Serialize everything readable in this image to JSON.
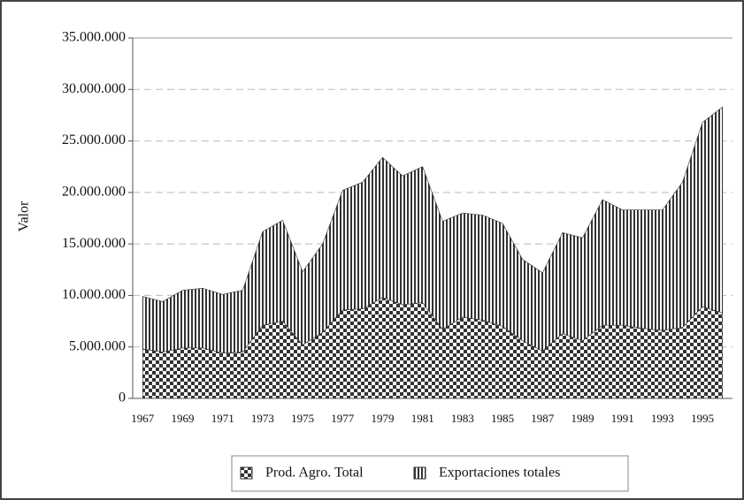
{
  "chart_data": {
    "type": "stacked-area",
    "y_label": "Valor",
    "categories": [
      "1967",
      null,
      "1969",
      null,
      "1971",
      null,
      "1973",
      null,
      "1975",
      null,
      "1977",
      null,
      "1979",
      null,
      "1981",
      null,
      "1983",
      null,
      "1985",
      null,
      "1987",
      null,
      "1989",
      null,
      "1991",
      null,
      "1993",
      null,
      "1995",
      null
    ],
    "series": [
      {
        "name": "Prod. Agro. Total",
        "color": "#333333",
        "pattern": "checker",
        "values": [
          4800000,
          4500000,
          4900000,
          4900000,
          4400000,
          4500000,
          7100000,
          7500000,
          5200000,
          6400000,
          8600000,
          8700000,
          9800000,
          9100000,
          9300000,
          6700000,
          7900000,
          7600000,
          7000000,
          5600000,
          4600000,
          6300000,
          5600000,
          7100000,
          7100000,
          6800000,
          6600000,
          6900000,
          8900000,
          8300000
        ]
      },
      {
        "name": "Exportaciones totales",
        "color": "#333333",
        "pattern": "stripes",
        "values": [
          5100000,
          4900000,
          5600000,
          5800000,
          5700000,
          6000000,
          9100000,
          9800000,
          7100000,
          8600000,
          11600000,
          12300000,
          13600000,
          12500000,
          13200000,
          10500000,
          10100000,
          10200000,
          10000000,
          7900000,
          7600000,
          9800000,
          10000000,
          12200000,
          11200000,
          11500000,
          11700000,
          14100000,
          17900000,
          20000000
        ]
      }
    ],
    "ylim": [
      0,
      35000000
    ],
    "yticks": [
      0,
      {
        "value": 5000000,
        "label": "5.000.000"
      },
      {
        "value": 10000000,
        "label": "10.000.000"
      },
      {
        "value": 15000000,
        "label": "15.000.000"
      },
      {
        "value": 20000000,
        "label": "20.000.000"
      },
      {
        "value": 25000000,
        "label": "25.000.000"
      },
      {
        "value": 30000000,
        "label": "30.000.000"
      },
      {
        "value": 35000000,
        "label": "35.000.000"
      }
    ],
    "grid": true
  }
}
